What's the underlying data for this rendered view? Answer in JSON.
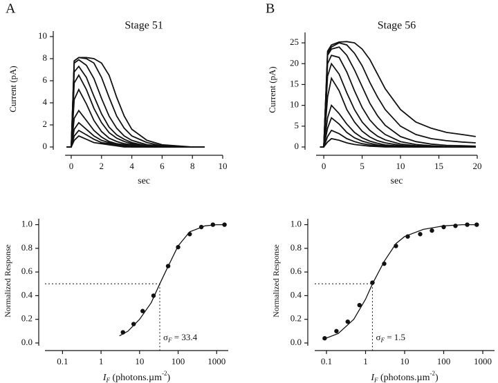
{
  "panels": [
    "A",
    "B"
  ],
  "chart_data": [
    {
      "type": "line",
      "title": "Stage 51",
      "x_label": "sec",
      "y_label": "Current (pA)",
      "color": "#111111",
      "xlim": [
        -0.4,
        10
      ],
      "xticks": [
        0,
        2,
        4,
        6,
        8,
        10
      ],
      "ylim": [
        0,
        10.5
      ],
      "yticks": [
        0,
        2,
        4,
        6,
        8,
        10
      ],
      "x": [
        -0.3,
        0,
        0.2,
        0.5,
        1,
        1.5,
        2,
        2.5,
        3,
        3.5,
        4,
        5,
        6,
        7,
        8,
        8.8
      ],
      "series": [
        {
          "values": [
            0,
            0,
            7.8,
            8.1,
            8.1,
            8.0,
            7.6,
            6.5,
            4.5,
            2.8,
            1.6,
            0.6,
            0.2,
            0.1,
            0,
            0
          ]
        },
        {
          "values": [
            0,
            0,
            7.8,
            8.1,
            8.0,
            7.6,
            6.3,
            4.5,
            2.8,
            1.7,
            1.0,
            0.4,
            0.1,
            0,
            0,
            0
          ]
        },
        {
          "values": [
            0,
            0,
            7.6,
            7.9,
            7.4,
            6.2,
            4.4,
            2.8,
            1.7,
            1.0,
            0.6,
            0.2,
            0.1,
            0,
            0,
            0
          ]
        },
        {
          "values": [
            0,
            0,
            6.8,
            7.3,
            6.3,
            4.6,
            3.0,
            1.8,
            1.1,
            0.7,
            0.4,
            0.1,
            0,
            0,
            0,
            0
          ]
        },
        {
          "values": [
            0,
            0,
            5.8,
            6.5,
            5.2,
            3.5,
            2.2,
            1.3,
            0.8,
            0.5,
            0.3,
            0.1,
            0,
            0,
            0,
            0
          ]
        },
        {
          "values": [
            0,
            0,
            4.3,
            5.2,
            3.9,
            2.4,
            1.4,
            0.8,
            0.5,
            0.3,
            0.2,
            0,
            0,
            0,
            0,
            0
          ]
        },
        {
          "values": [
            0,
            0,
            2.6,
            3.3,
            2.4,
            1.5,
            0.9,
            0.5,
            0.3,
            0.2,
            0.1,
            0,
            0,
            0,
            0,
            0
          ]
        },
        {
          "values": [
            0,
            0,
            1.6,
            2.2,
            1.6,
            1.0,
            0.6,
            0.4,
            0.2,
            0.1,
            0.1,
            0,
            0,
            0,
            0,
            0
          ]
        },
        {
          "values": [
            0,
            0,
            1.0,
            1.5,
            1.1,
            0.7,
            0.4,
            0.3,
            0.2,
            0.1,
            0,
            0,
            0,
            0,
            0,
            0
          ]
        },
        {
          "values": [
            0,
            0,
            0.6,
            1.0,
            0.7,
            0.4,
            0.3,
            0.2,
            0.1,
            0,
            0,
            0,
            0,
            0,
            0,
            0
          ]
        }
      ]
    },
    {
      "type": "line",
      "title": "Stage 56",
      "x_label": "sec",
      "y_label": "Current (pA)",
      "color": "#111111",
      "xlim": [
        -1,
        20
      ],
      "xticks": [
        0,
        5,
        10,
        15,
        20
      ],
      "ylim": [
        0,
        27.5
      ],
      "yticks": [
        0,
        5,
        10,
        15,
        20,
        25
      ],
      "x": [
        -0.5,
        0,
        0.5,
        1,
        2,
        3,
        4,
        5,
        6,
        7,
        8,
        10,
        12,
        14,
        16,
        18,
        19.8
      ],
      "series": [
        {
          "values": [
            0,
            0,
            23,
            24.5,
            25.2,
            25.3,
            25,
            23.5,
            21,
            17.5,
            14,
            9,
            6,
            4.5,
            3.5,
            3,
            2.5
          ]
        },
        {
          "values": [
            0,
            0,
            22.5,
            24,
            25,
            24.5,
            22.5,
            19.5,
            15.5,
            12,
            9,
            5,
            3,
            2,
            1.5,
            1.2,
            1
          ]
        },
        {
          "values": [
            0,
            0,
            22,
            23.5,
            24,
            22,
            18.5,
            14.5,
            10.5,
            7.5,
            5.2,
            2.5,
            1.3,
            0.7,
            0.4,
            0.3,
            0.2
          ]
        },
        {
          "values": [
            0,
            0,
            20,
            22,
            21.5,
            18,
            13.5,
            9.5,
            6.5,
            4.5,
            3,
            1.3,
            0.6,
            0.3,
            0.1,
            0,
            0
          ]
        },
        {
          "values": [
            0,
            0,
            17,
            20,
            17.5,
            13,
            9,
            6,
            4,
            2.6,
            1.7,
            0.7,
            0.3,
            0.1,
            0,
            0,
            0
          ]
        },
        {
          "values": [
            0,
            0,
            12,
            16.5,
            13.5,
            9,
            6,
            3.8,
            2.4,
            1.5,
            1,
            0.4,
            0.1,
            0,
            0,
            0,
            0
          ]
        },
        {
          "values": [
            0,
            0,
            7,
            10,
            8,
            5.5,
            3.5,
            2.2,
            1.4,
            0.9,
            0.5,
            0.2,
            0,
            0,
            0,
            0,
            0
          ]
        },
        {
          "values": [
            0,
            0,
            4.5,
            7,
            5.5,
            3.5,
            2.2,
            1.4,
            0.9,
            0.5,
            0.3,
            0.1,
            0,
            0,
            0,
            0,
            0
          ]
        },
        {
          "values": [
            0,
            0,
            2.5,
            4,
            3.2,
            2,
            1.3,
            0.8,
            0.5,
            0.3,
            0.2,
            0,
            0,
            0,
            0,
            0,
            0
          ]
        },
        {
          "values": [
            0,
            0,
            1.2,
            2,
            1.6,
            1,
            0.6,
            0.4,
            0.2,
            0.1,
            0,
            0,
            0,
            0,
            0,
            0,
            0
          ]
        }
      ]
    },
    {
      "type": "scatter",
      "y_label": "Normalized Response",
      "color": "#111111",
      "log_x": true,
      "x_label": {
        "symbol": "I",
        "subscript": "F",
        "text": " (photons.µm",
        "superscript": "-2",
        "close": ")"
      },
      "xlim": [
        0.035,
        2000
      ],
      "xticks": [
        0.1,
        1,
        10,
        100,
        1000
      ],
      "ylim": [
        0,
        1.05
      ],
      "yticks": [
        {
          "value": 0,
          "label": "0.0"
        },
        0.2,
        0.4,
        0.6,
        0.8,
        {
          "value": 1,
          "label": "1.0"
        }
      ],
      "x": [
        3.7,
        7,
        12,
        23,
        55,
        100,
        200,
        400,
        800,
        1600
      ],
      "values": [
        0.09,
        0.16,
        0.27,
        0.4,
        0.65,
        0.81,
        0.92,
        0.98,
        1.0,
        1.0
      ],
      "fit": {
        "x": [
          3,
          5,
          10,
          20,
          33.4,
          50,
          100,
          200,
          500,
          1000,
          1700
        ],
        "values": [
          0.06,
          0.1,
          0.2,
          0.34,
          0.5,
          0.62,
          0.82,
          0.94,
          0.99,
          1,
          1
        ]
      },
      "reference": {
        "x": 33.4,
        "y": 0.5
      },
      "annotation": {
        "symbol": "σ",
        "subscript": "F",
        "text": " = 33.4"
      }
    },
    {
      "type": "scatter",
      "y_label": "Normalized Response",
      "color": "#111111",
      "log_x": true,
      "x_label": {
        "symbol": "I",
        "subscript": "F",
        "text": " (photons.µm",
        "superscript": "-2",
        "close": ")"
      },
      "xlim": [
        0.05,
        2000
      ],
      "xticks": [
        0.1,
        1,
        10,
        100,
        1000
      ],
      "ylim": [
        0,
        1.05
      ],
      "yticks": [
        {
          "value": 0,
          "label": "0.0"
        },
        0.2,
        0.4,
        0.6,
        0.8,
        {
          "value": 1,
          "label": "1.0"
        }
      ],
      "x": [
        0.09,
        0.18,
        0.35,
        0.7,
        1.5,
        3,
        6,
        12,
        25,
        50,
        100,
        200,
        400,
        700
      ],
      "values": [
        0.04,
        0.1,
        0.18,
        0.32,
        0.51,
        0.67,
        0.82,
        0.9,
        0.92,
        0.95,
        0.98,
        0.99,
        1.0,
        1.0
      ],
      "fit": {
        "x": [
          0.08,
          0.2,
          0.5,
          1,
          1.5,
          3,
          6,
          10,
          30,
          100,
          300,
          700
        ],
        "values": [
          0.03,
          0.08,
          0.2,
          0.37,
          0.5,
          0.69,
          0.84,
          0.9,
          0.96,
          0.99,
          1,
          1
        ]
      },
      "reference": {
        "x": 1.5,
        "y": 0.5
      },
      "annotation": {
        "symbol": "σ",
        "subscript": "F",
        "text": " = 1.5"
      }
    }
  ]
}
